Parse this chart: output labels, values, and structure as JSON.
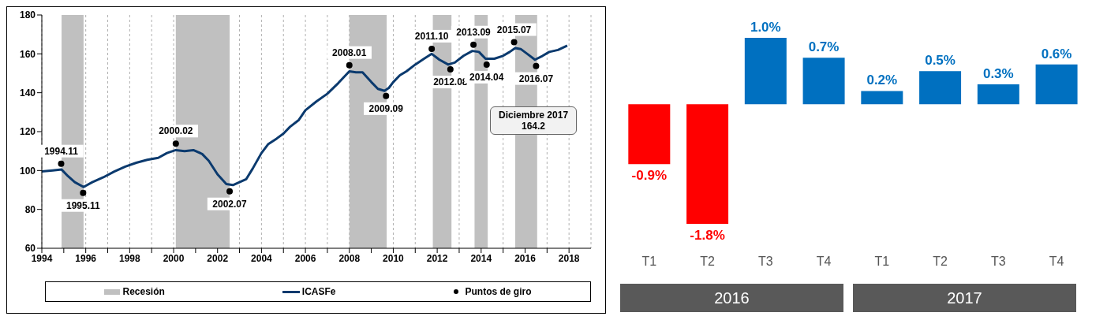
{
  "chart_data": [
    {
      "type": "line",
      "xlim": [
        1994,
        2019
      ],
      "ylim": [
        60,
        180
      ],
      "xticks": [
        1994,
        {
          "value": 1995,
          "label": null
        },
        1996,
        {
          "value": 1997,
          "label": null
        },
        1998,
        {
          "value": 1999,
          "label": null
        },
        2000,
        {
          "value": 2001,
          "label": null
        },
        2002,
        {
          "value": 2003,
          "label": null
        },
        2004,
        {
          "value": 2005,
          "label": null
        },
        2006,
        {
          "value": 2007,
          "label": null
        },
        2008,
        {
          "value": 2009,
          "label": null
        },
        2010,
        {
          "value": 2011,
          "label": null
        },
        2012,
        {
          "value": 2013,
          "label": null
        },
        2014,
        {
          "value": 2015,
          "label": null
        },
        2016,
        {
          "value": 2017,
          "label": null
        },
        2018
      ],
      "yticks": [
        60,
        80,
        100,
        120,
        140,
        160,
        180
      ],
      "grid": "x",
      "legend": "bottom",
      "bands": [
        {
          "axis": "x",
          "from": 1994.9,
          "to": 1995.9,
          "label": "Recesión",
          "color": "#c0c0c0"
        },
        {
          "axis": "x",
          "from": 2000.1,
          "to": 2002.55,
          "color": "#c0c0c0"
        },
        {
          "axis": "x",
          "from": 2008.0,
          "to": 2009.7,
          "color": "#c0c0c0"
        },
        {
          "axis": "x",
          "from": 2011.8,
          "to": 2012.65,
          "color": "#c0c0c0"
        },
        {
          "axis": "x",
          "from": 2013.7,
          "to": 2014.3,
          "color": "#c0c0c0"
        },
        {
          "axis": "x",
          "from": 2015.55,
          "to": 2016.55,
          "color": "#c0c0c0"
        }
      ],
      "series": [
        {
          "name": "ICASFe",
          "type": "line",
          "color": "#0b3a6e",
          "line_style": "solid",
          "x": [
            1994.0,
            1994.5,
            1994.9,
            1995.2,
            1995.5,
            1995.9,
            1996.3,
            1996.8,
            1997.3,
            1997.8,
            1998.3,
            1998.8,
            1999.3,
            1999.7,
            2000.1,
            2000.5,
            2000.9,
            2001.3,
            2001.6,
            2002.0,
            2002.4,
            2002.7,
            2003.0,
            2003.3,
            2003.6,
            2004.0,
            2004.3,
            2004.7,
            2005.0,
            2005.3,
            2005.7,
            2006.0,
            2006.5,
            2007.0,
            2007.5,
            2008.0,
            2008.3,
            2008.6,
            2009.0,
            2009.3,
            2009.6,
            2009.8,
            2010.0,
            2010.3,
            2010.6,
            2011.0,
            2011.4,
            2011.75,
            2012.1,
            2012.5,
            2012.8,
            2013.2,
            2013.6,
            2013.9,
            2014.2,
            2014.6,
            2015.0,
            2015.3,
            2015.55,
            2015.8,
            2016.1,
            2016.45,
            2016.8,
            2017.1,
            2017.5,
            2017.92
          ],
          "values": [
            99.5,
            100,
            100.5,
            97,
            94,
            91.5,
            94,
            96.5,
            99.5,
            102,
            104,
            105.5,
            106.5,
            109,
            110.5,
            110,
            110.5,
            108.5,
            105,
            98,
            93,
            92.5,
            94,
            95.5,
            101,
            109,
            113.5,
            116.5,
            119,
            122.5,
            126,
            131,
            135.5,
            139.5,
            145,
            151,
            150.5,
            150.5,
            145.5,
            142,
            141,
            142.5,
            145.5,
            149,
            151,
            154.5,
            157.5,
            160,
            157,
            154.5,
            155.5,
            159,
            161.5,
            161,
            157.5,
            157.5,
            159,
            161,
            163,
            162.5,
            160,
            157,
            159,
            161,
            162,
            164.2
          ]
        },
        {
          "name": "Puntos de giro",
          "type": "scatter",
          "color": "#000000",
          "marker": "circle",
          "x": [
            1994.88,
            1995.88,
            2000.1,
            2002.55,
            2008.0,
            2009.67,
            2011.75,
            2012.6,
            2013.65,
            2014.25,
            2015.5,
            2016.5
          ],
          "values": [
            103.5,
            88.5,
            113.8,
            89.3,
            154.2,
            138.3,
            162.6,
            152,
            164.7,
            154.5,
            166,
            153.8
          ]
        }
      ],
      "annotations": [
        "Diciembre 2017\n164.2",
        {
          "text": "1994.11",
          "x": 1994.88,
          "y": 103.5
        },
        {
          "text": "1995.11",
          "x": 1995.88,
          "y": 88.5
        },
        {
          "text": "2000.02",
          "x": 2000.1,
          "y": 113.8
        },
        {
          "text": "2002.07",
          "x": 2002.55,
          "y": 89.3
        },
        {
          "text": "2008.01",
          "x": 2008.0,
          "y": 154.2
        },
        {
          "text": "2009.09",
          "x": 2009.67,
          "y": 138.3
        },
        {
          "text": "2011.10",
          "x": 2011.75,
          "y": 162.6
        },
        {
          "text": "2012.08",
          "x": 2012.6,
          "y": 152
        },
        {
          "text": "2013.09",
          "x": 2013.65,
          "y": 164.7
        },
        {
          "text": "2014.04",
          "x": 2014.25,
          "y": 154.5
        },
        {
          "text": "2015.07",
          "x": 2015.5,
          "y": 166
        },
        {
          "text": "2016.07",
          "x": 2016.5,
          "y": 153.8
        }
      ]
    },
    {
      "type": "bar",
      "categories": [
        "T1",
        "T2",
        "T3",
        "T4",
        "T1",
        "T2",
        "T3",
        "T4"
      ],
      "values": [
        -0.9,
        -1.8,
        1.0,
        0.7,
        0.2,
        0.5,
        0.3,
        0.6
      ],
      "colors": [
        "#ff0000",
        "#ff0000",
        "#0070c0",
        "#0070c0",
        "#0070c0",
        "#0070c0",
        "#0070c0",
        "#0070c0"
      ],
      "value_labels": [
        "-0.9%",
        "-1.8%",
        "1.0%",
        "0.7%",
        "0.2%",
        "0.5%",
        "0.3%",
        "0.6%"
      ],
      "annotations": [
        "2016",
        "2017"
      ]
    }
  ]
}
